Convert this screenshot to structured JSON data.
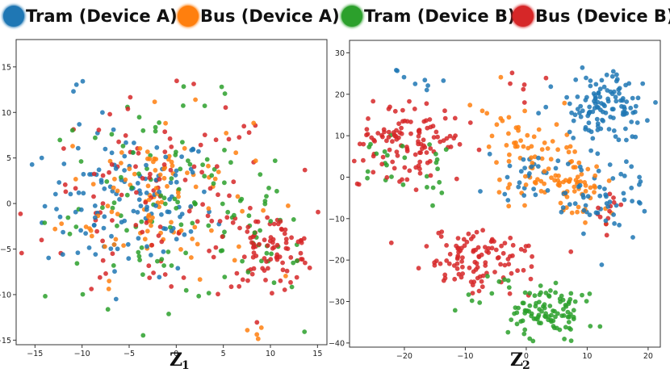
{
  "legend": {
    "items": [
      {
        "label": "Tram (Device A)",
        "color": "#1f77b4"
      },
      {
        "label": "Bus (Device A)",
        "color": "#ff7f0e"
      },
      {
        "label": "Tram (Device B)",
        "color": "#2ca02c"
      },
      {
        "label": "Bus (Device B)",
        "color": "#d62728"
      }
    ]
  },
  "chart_data": [
    {
      "type": "scatter",
      "xlabel": "Z",
      "xlabel_sub": "1",
      "xlim": [
        -17,
        16
      ],
      "ylim": [
        -15.5,
        18
      ],
      "xticks": [
        -15,
        -10,
        -5,
        0,
        5,
        10,
        15
      ],
      "yticks": [
        15,
        10,
        5,
        0,
        -5,
        -10,
        -15
      ],
      "grid": false,
      "legend": "top",
      "series": [
        {
          "label_ref": 0,
          "color": "#1f77b4",
          "clusters": [
            {
              "cx": -5,
              "cy": 0,
              "sx": 4.5,
              "sy": 4,
              "n": 130
            },
            {
              "cx": -11,
              "cy": 14,
              "sx": 1,
              "sy": 1,
              "n": 3
            }
          ]
        },
        {
          "label_ref": 1,
          "color": "#ff7f0e",
          "clusters": [
            {
              "cx": -2,
              "cy": 1,
              "sx": 5,
              "sy": 4.5,
              "n": 110
            },
            {
              "cx": 9,
              "cy": -14,
              "sx": 0.5,
              "sy": 0.4,
              "n": 4
            }
          ]
        },
        {
          "label_ref": 2,
          "color": "#2ca02c",
          "clusters": [
            {
              "cx": -1,
              "cy": 0,
              "sx": 6.5,
              "sy": 5.5,
              "n": 110
            },
            {
              "cx": 10,
              "cy": -5,
              "sx": 2.5,
              "sy": 2.5,
              "n": 25
            }
          ]
        },
        {
          "label_ref": 3,
          "color": "#d62728",
          "clusters": [
            {
              "cx": -2,
              "cy": 0,
              "sx": 6.5,
              "sy": 5.5,
              "n": 110
            },
            {
              "cx": 10,
              "cy": -5,
              "sx": 2.5,
              "sy": 2,
              "n": 90
            }
          ]
        }
      ]
    },
    {
      "type": "scatter",
      "xlabel": "Z",
      "xlabel_sub": "2",
      "xlim": [
        -29,
        22
      ],
      "ylim": [
        -41,
        33
      ],
      "xticks": [
        -20,
        -10,
        0,
        10,
        20
      ],
      "yticks": [
        30,
        20,
        10,
        0,
        -10,
        -20,
        -30,
        -40
      ],
      "grid": false,
      "legend": "top",
      "series": [
        {
          "label_ref": 0,
          "color": "#1f77b4",
          "clusters": [
            {
              "cx": 13,
              "cy": 17,
              "sx": 4,
              "sy": 4,
              "n": 120
            },
            {
              "cx": 13,
              "cy": -5,
              "sx": 4,
              "sy": 5,
              "n": 60
            },
            {
              "cx": 0,
              "cy": 1,
              "sx": 3,
              "sy": 4,
              "n": 25
            },
            {
              "cx": -18,
              "cy": 23,
              "sx": 2,
              "sy": 1.5,
              "n": 8
            }
          ]
        },
        {
          "label_ref": 1,
          "color": "#ff7f0e",
          "clusters": [
            {
              "cx": 2,
              "cy": 3,
              "sx": 4,
              "sy": 6,
              "n": 70
            },
            {
              "cx": 8,
              "cy": -3,
              "sx": 3,
              "sy": 4,
              "n": 40
            },
            {
              "cx": -4,
              "cy": 10,
              "sx": 2.5,
              "sy": 3,
              "n": 15
            }
          ]
        },
        {
          "label_ref": 2,
          "color": "#2ca02c",
          "clusters": [
            {
              "cx": 4,
              "cy": -33,
              "sx": 3.5,
              "sy": 3,
              "n": 100
            },
            {
              "cx": -24,
              "cy": 5,
              "sx": 2.5,
              "sy": 4,
              "n": 15
            },
            {
              "cx": -15,
              "cy": 0,
              "sx": 2,
              "sy": 5,
              "n": 12
            },
            {
              "cx": -6,
              "cy": -26,
              "sx": 2.5,
              "sy": 3,
              "n": 10
            }
          ]
        },
        {
          "label_ref": 3,
          "color": "#d62728",
          "clusters": [
            {
              "cx": -19,
              "cy": 9,
              "sx": 4.5,
              "sy": 4.5,
              "n": 120
            },
            {
              "cx": -8,
              "cy": -20,
              "sx": 4.5,
              "sy": 3.5,
              "n": 110
            },
            {
              "cx": 14,
              "cy": -10,
              "sx": 2,
              "sy": 4,
              "n": 12
            },
            {
              "cx": 0,
              "cy": 22,
              "sx": 3,
              "sy": 3,
              "n": 6
            }
          ]
        }
      ]
    }
  ]
}
